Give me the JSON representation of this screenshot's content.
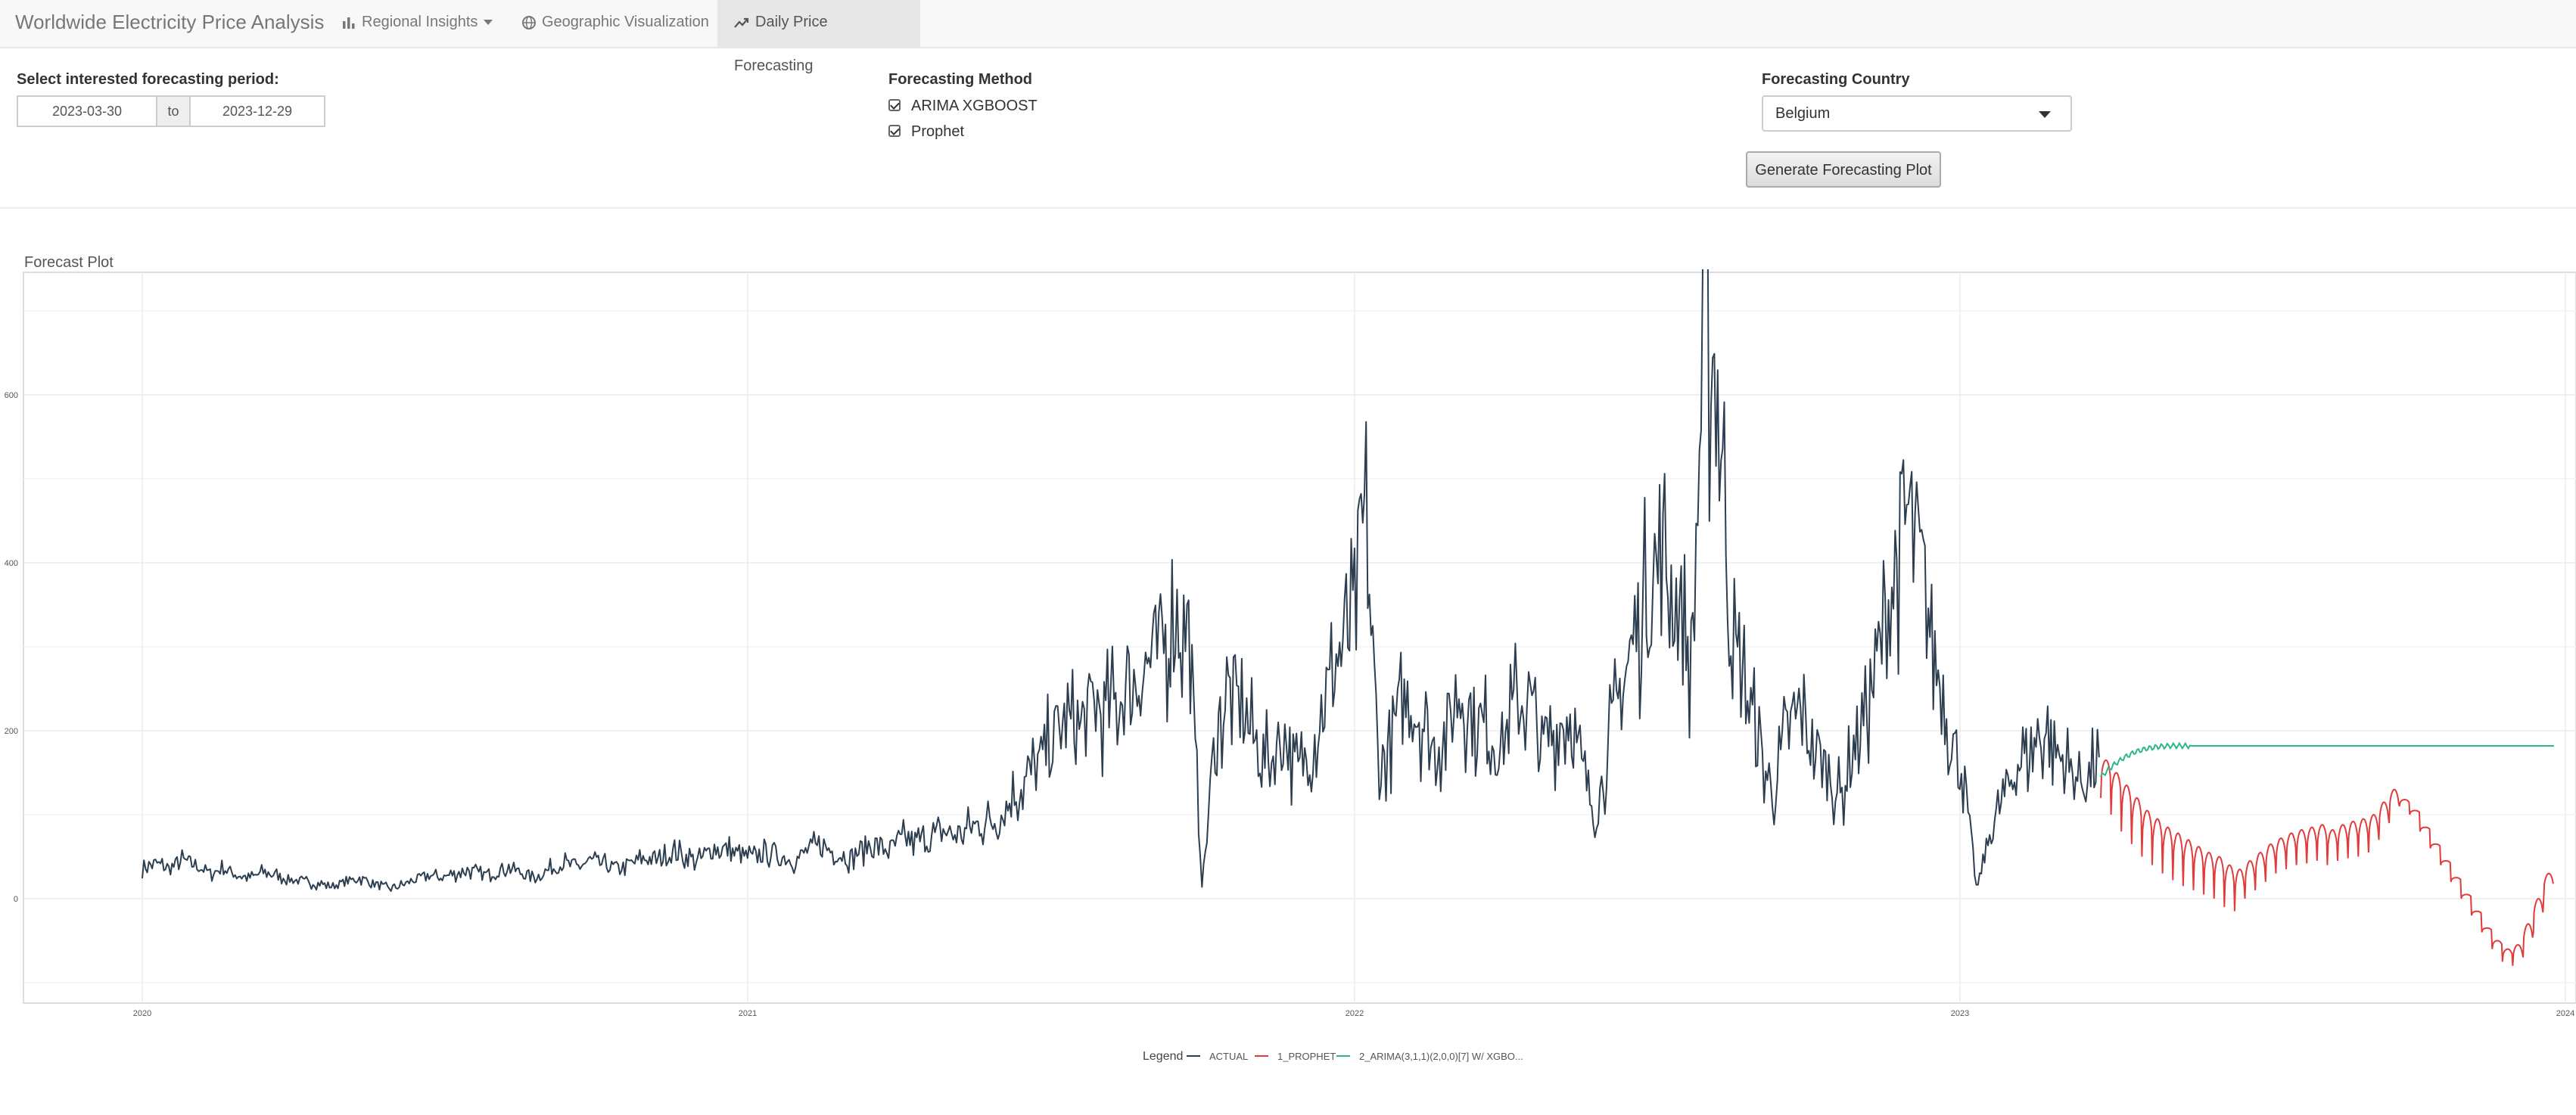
{
  "navbar": {
    "brand": "Worldwide Electricity Price Analysis",
    "items": [
      {
        "label": "Regional Insights",
        "icon": "bar-chart-icon",
        "dropdown": true
      },
      {
        "label": "Geographic Visualization",
        "icon": "globe-icon"
      },
      {
        "label": "Daily Price Forecasting",
        "icon": "trend-line-icon",
        "active": true
      }
    ]
  },
  "controls": {
    "period": {
      "label": "Select interested forecasting period:",
      "start": "2023-03-30",
      "separator": "to",
      "end": "2023-12-29"
    },
    "method": {
      "label": "Forecasting Method",
      "options": [
        {
          "label": "ARIMA XGBOOST",
          "checked": true
        },
        {
          "label": "Prophet",
          "checked": true
        }
      ]
    },
    "country": {
      "label": "Forecasting Country",
      "selected": "Belgium"
    },
    "generate_label": "Generate Forecasting Plot"
  },
  "plot": {
    "title": "Forecast Plot"
  },
  "chart_data": {
    "type": "line",
    "title": "",
    "xlabel": "",
    "ylabel": "",
    "x_ticks": [
      "2020",
      "2021",
      "2022",
      "2023",
      "2024"
    ],
    "y_ticks": [
      "0",
      "200",
      "400",
      "600"
    ],
    "ylim": [
      -120,
      720
    ],
    "xlim": [
      "2019-10-20",
      "2024-01-05"
    ],
    "grid": true,
    "legend": {
      "title": "Legend",
      "placement": "bottom"
    },
    "series": [
      {
        "name": "ACTUAL",
        "color": "#2c3e50",
        "x_range": [
          "2020-01-01",
          "2023-03-29"
        ],
        "approx_weekly_values": [
          38,
          42,
          35,
          45,
          40,
          30,
          36,
          28,
          25,
          32,
          27,
          22,
          20,
          18,
          15,
          20,
          25,
          18,
          12,
          15,
          22,
          28,
          25,
          30,
          35,
          28,
          32,
          38,
          30,
          26,
          35,
          42,
          38,
          45,
          40,
          36,
          42,
          48,
          45,
          55,
          50,
          45,
          60,
          58,
          52,
          48,
          55,
          50,
          45,
          58,
          62,
          55,
          48,
          60,
          65,
          58,
          70,
          68,
          72,
          80,
          75,
          85,
          90,
          95,
          120,
          140,
          160,
          190,
          210,
          200,
          230,
          220,
          240,
          260,
          280,
          300,
          330,
          320,
          15,
          200,
          250,
          220,
          180,
          160,
          200,
          150,
          180,
          230,
          290,
          320,
          460,
          150,
          200,
          240,
          220,
          180,
          200,
          250,
          210,
          200,
          180,
          230,
          240,
          180,
          200,
          220,
          150,
          100,
          190,
          260,
          320,
          380,
          400,
          350,
          280,
          700,
          600,
          300,
          250,
          180,
          120,
          200,
          220,
          180,
          150,
          120,
          180,
          240,
          300,
          400,
          460,
          380,
          280,
          200,
          150,
          10,
          80,
          120,
          160,
          180,
          200,
          170,
          150,
          140,
          160
        ]
      },
      {
        "name": "1_PROPHET",
        "color": "#e03c3c",
        "x_range": [
          "2023-03-30",
          "2023-12-29"
        ],
        "weekly_min": [
          120,
          100,
          80,
          65,
          50,
          40,
          30,
          22,
          15,
          10,
          5,
          0,
          -10,
          -15,
          0,
          10,
          20,
          30,
          35,
          40,
          42,
          45,
          40,
          45,
          48,
          50,
          55,
          70,
          90,
          110,
          100,
          80,
          60,
          40,
          20,
          0,
          -20,
          -40,
          -60,
          -75,
          -80,
          -70,
          -40,
          0
        ],
        "weekly_max": [
          165,
          150,
          135,
          120,
          105,
          95,
          85,
          78,
          70,
          62,
          55,
          50,
          40,
          35,
          45,
          55,
          65,
          72,
          78,
          82,
          85,
          88,
          82,
          88,
          92,
          95,
          100,
          115,
          130,
          118,
          105,
          85,
          65,
          45,
          25,
          5,
          -15,
          -35,
          -50,
          -60,
          -55,
          -30,
          0,
          30
        ]
      },
      {
        "name": "2_ARIMA(3,1,1)(2,0,0)[7] W/ XGBO...",
        "color": "#2fb58b",
        "x_range": [
          "2023-03-30",
          "2023-12-29"
        ],
        "approx_weekly_values": [
          145,
          158,
          168,
          175,
          179,
          181,
          182,
          182,
          182,
          182,
          182,
          182,
          182,
          182,
          182,
          182,
          182,
          182,
          182,
          182,
          182,
          182,
          182,
          182,
          182,
          182,
          182,
          182,
          182,
          182,
          182,
          182,
          182,
          182,
          182,
          182,
          182,
          182,
          182,
          182
        ]
      }
    ]
  }
}
